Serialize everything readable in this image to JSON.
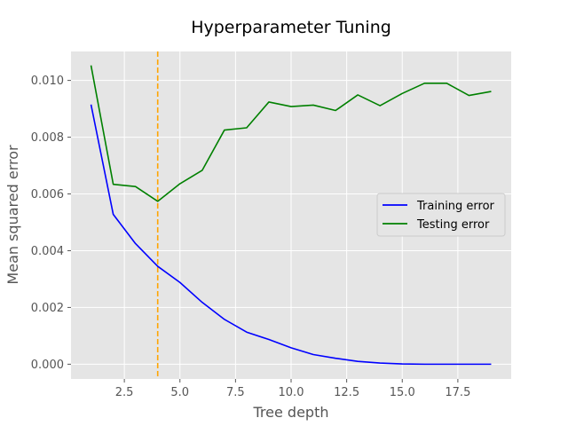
{
  "chart_data": {
    "type": "line",
    "title": "Hyperparameter Tuning",
    "xlabel": "Tree depth",
    "ylabel": "Mean squared error",
    "xlim": [
      0.1,
      19.9
    ],
    "ylim": [
      -0.00052,
      0.01102
    ],
    "xticks": [
      2.5,
      5.0,
      7.5,
      10.0,
      12.5,
      15.0,
      17.5
    ],
    "xtick_labels": [
      "2.5",
      "5.0",
      "7.5",
      "10.0",
      "12.5",
      "15.0",
      "17.5"
    ],
    "yticks": [
      0.0,
      0.002,
      0.004,
      0.006,
      0.008,
      0.01
    ],
    "ytick_labels": [
      "0.000",
      "0.002",
      "0.004",
      "0.006",
      "0.008",
      "0.010"
    ],
    "grid": true,
    "legend_position": "center-right",
    "x": [
      1,
      2,
      3,
      4,
      5,
      6,
      7,
      8,
      9,
      10,
      11,
      12,
      13,
      14,
      15,
      16,
      17,
      18,
      19
    ],
    "series": [
      {
        "name": "Training error",
        "color": "#0000ff",
        "values": [
          0.00915,
          0.00528,
          0.00425,
          0.00345,
          0.00288,
          0.00218,
          0.00158,
          0.00113,
          0.00087,
          0.00058,
          0.00034,
          0.00021,
          0.0001,
          4e-05,
          1e-05,
          0.0,
          0.0,
          0.0,
          0.0
        ]
      },
      {
        "name": "Testing error",
        "color": "#008000",
        "values": [
          0.01053,
          0.00634,
          0.00626,
          0.00574,
          0.00636,
          0.00683,
          0.00825,
          0.00833,
          0.00924,
          0.00908,
          0.00913,
          0.00894,
          0.00949,
          0.00911,
          0.00954,
          0.0099,
          0.0099,
          0.00947,
          0.00961
        ]
      }
    ],
    "annotations": [
      {
        "type": "vline",
        "x": 4,
        "color": "#ffa500",
        "style": "dashed"
      }
    ]
  }
}
